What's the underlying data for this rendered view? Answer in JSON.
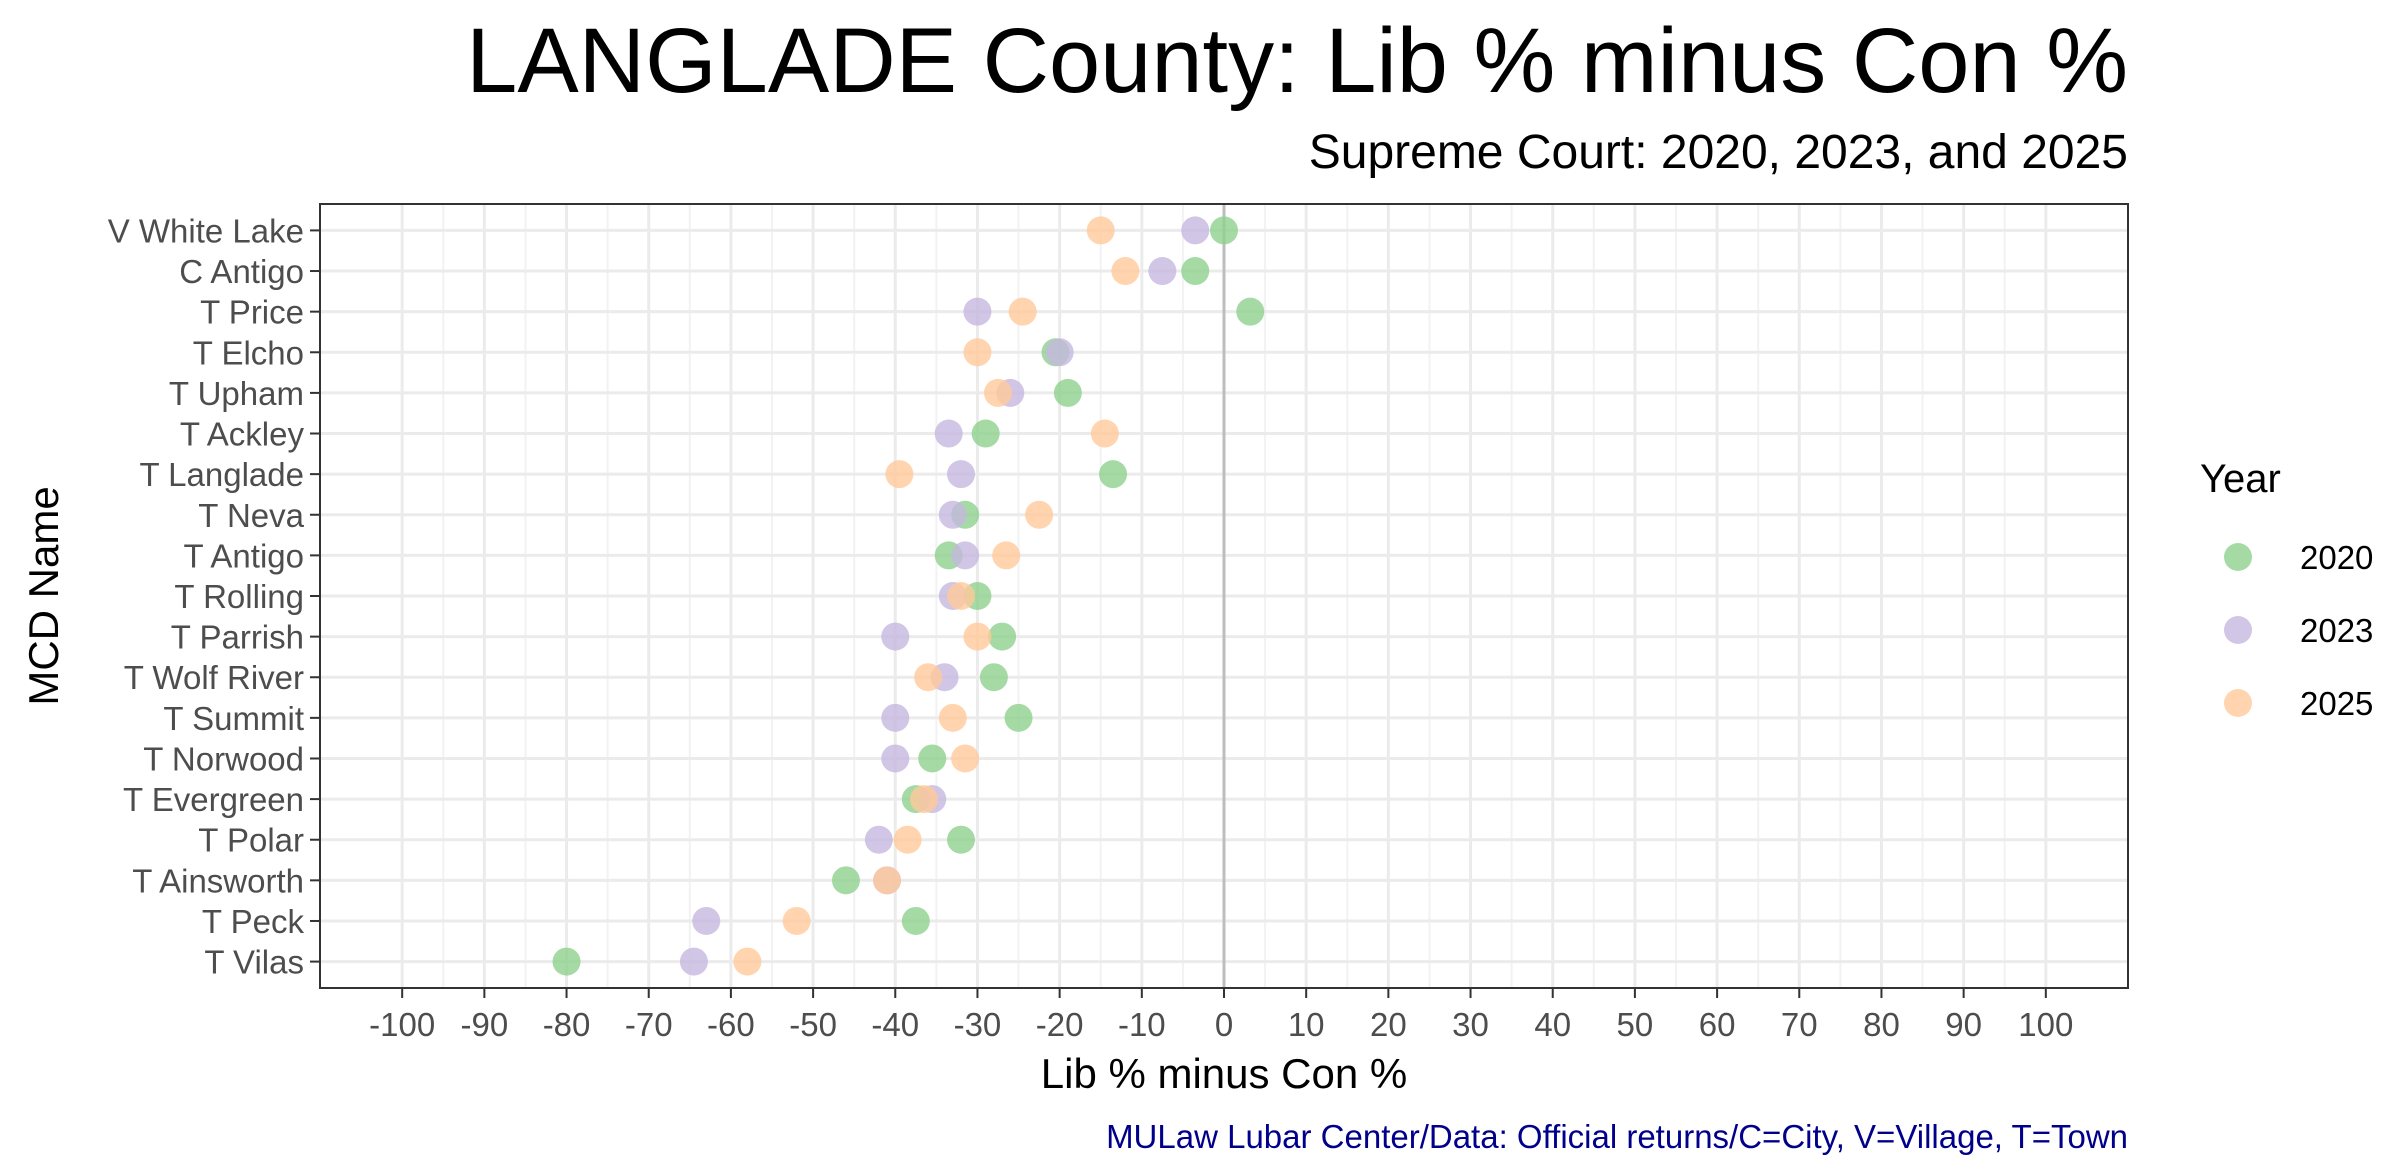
{
  "chart_data": {
    "type": "scatter",
    "title": "LANGLADE County: Lib % minus Con %",
    "subtitle": "Supreme Court: 2020, 2023, and 2025",
    "xlabel": "Lib % minus Con %",
    "ylabel": "MCD Name",
    "caption": "MULaw Lubar Center/Data: Official returns/C=City, V=Village, T=Town",
    "xlim": [
      -110,
      110
    ],
    "xticks": [
      -100,
      -90,
      -80,
      -70,
      -60,
      -50,
      -40,
      -30,
      -20,
      -10,
      0,
      10,
      20,
      30,
      40,
      50,
      60,
      70,
      80,
      90,
      100
    ],
    "xtick_labels": [
      "-100",
      "-90",
      "-80",
      "-70",
      "-60",
      "-50",
      "-40",
      "-30",
      "-20",
      "-10",
      "0",
      "10",
      "20",
      "30",
      "40",
      "50",
      "60",
      "70",
      "80",
      "90",
      "100"
    ],
    "categories": [
      "V White Lake",
      "C Antigo",
      "T Price",
      "T Elcho",
      "T Upham",
      "T Ackley",
      "T Langlade",
      "T Neva",
      "T Antigo",
      "T Rolling",
      "T Parrish",
      "T Wolf River",
      "T Summit",
      "T Norwood",
      "T Evergreen",
      "T Polar",
      "T Ainsworth",
      "T Peck",
      "T Vilas"
    ],
    "reference_line_x": 0,
    "grid": true,
    "legend": {
      "title": "Year",
      "position": "right"
    },
    "series": [
      {
        "name": "2020",
        "color": "#8fd18f",
        "values": [
          0,
          -3.5,
          3.2,
          -20.5,
          -19,
          -29,
          -13.5,
          -31.5,
          -33.5,
          -30,
          -27,
          -28,
          -25,
          -35.5,
          -37.5,
          -32,
          -46,
          -37.5,
          -80
        ]
      },
      {
        "name": "2023",
        "color": "#c6b8df",
        "values": [
          -3.5,
          -7.5,
          -30,
          -20,
          -26,
          -33.5,
          -32,
          -33,
          -31.5,
          -33,
          -40,
          -34,
          -40,
          -40,
          -35.5,
          -42,
          -41,
          -63,
          -64.5
        ]
      },
      {
        "name": "2025",
        "color": "#ffc99a",
        "values": [
          -15,
          -12,
          -24.5,
          -30,
          -27.5,
          -14.5,
          -39.5,
          -22.5,
          -26.5,
          -32,
          -30,
          -36,
          -33,
          -31.5,
          -36.5,
          -38.5,
          -41,
          -52,
          -58
        ]
      }
    ]
  }
}
